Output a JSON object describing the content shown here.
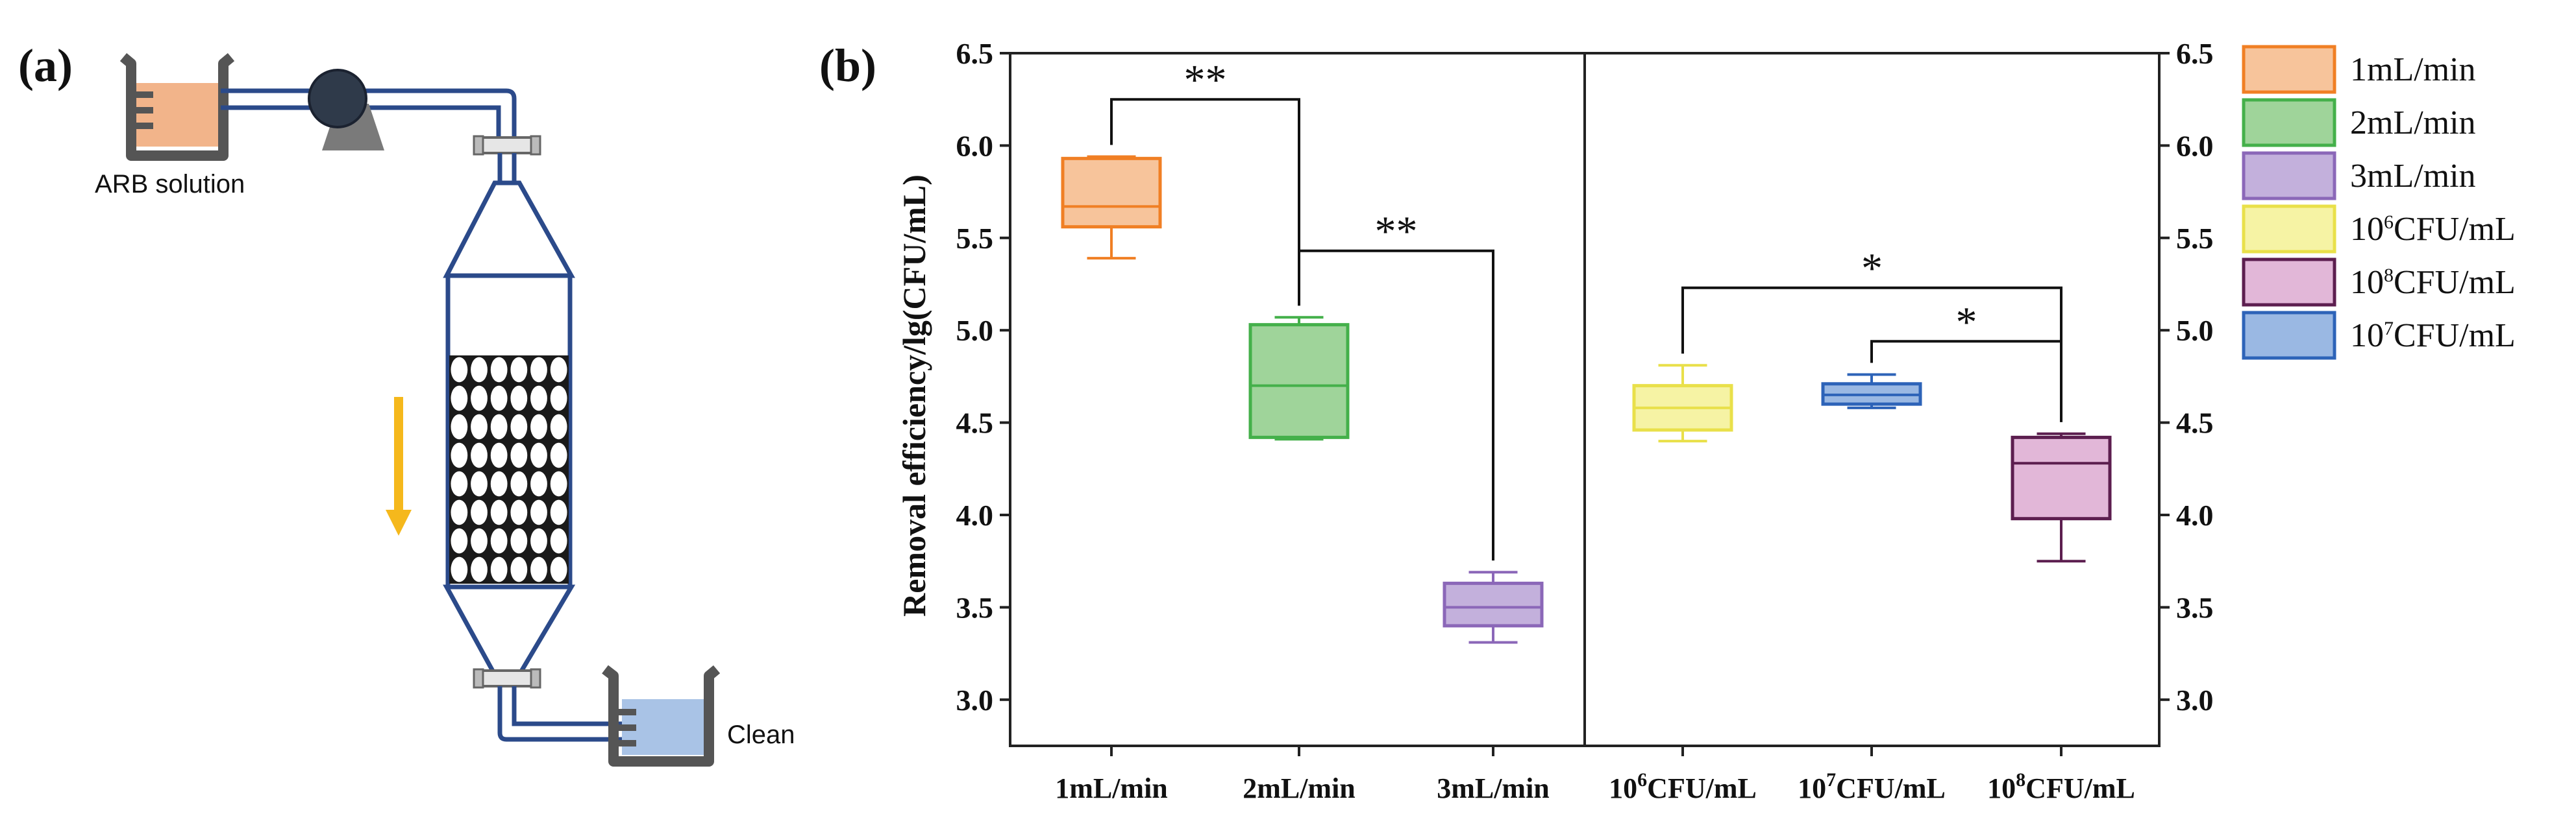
{
  "panels": {
    "a": "(a)",
    "b": "(b)"
  },
  "diagram": {
    "source_label": "ARB solution",
    "outlet_label": "Clean",
    "colors": {
      "pipe": "#2b4a8a",
      "source_liquid": "#f2b48a",
      "outlet_liquid": "#a9c3e6",
      "arrow": "#f5b81c",
      "pump": "#2f3a4a"
    }
  },
  "chart_data": {
    "type": "box",
    "ylabel": "Removal efficiency/lg(CFU/mL)",
    "ylim": [
      2.75,
      6.5
    ],
    "yticks": [
      "3.0",
      "3.5",
      "4.0",
      "4.5",
      "5.0",
      "5.5",
      "6.0",
      "6.5"
    ],
    "ytick_values": [
      3.0,
      3.5,
      4.0,
      4.5,
      5.0,
      5.5,
      6.0,
      6.5
    ],
    "categories": [
      {
        "prefix": "1mL/min",
        "exp": "",
        "suffix": ""
      },
      {
        "prefix": "2mL/min",
        "exp": "",
        "suffix": ""
      },
      {
        "prefix": "3mL/min",
        "exp": "",
        "suffix": ""
      },
      {
        "prefix": "10",
        "exp": "6",
        "suffix": "CFU/mL"
      },
      {
        "prefix": "10",
        "exp": "7",
        "suffix": "CFU/mL"
      },
      {
        "prefix": "10",
        "exp": "8",
        "suffix": "CFU/mL"
      }
    ],
    "series": [
      {
        "name": "1mL/min",
        "min": 5.39,
        "q1": 5.56,
        "median": 5.67,
        "q3": 5.93,
        "max": 5.94,
        "edge": "#f07f24",
        "fill": "#f7c49b"
      },
      {
        "name": "2mL/min",
        "min": 4.41,
        "q1": 4.42,
        "median": 4.7,
        "q3": 5.03,
        "max": 5.07,
        "edge": "#44b04a",
        "fill": "#9fd49a"
      },
      {
        "name": "3mL/min",
        "min": 3.31,
        "q1": 3.4,
        "median": 3.5,
        "q3": 3.63,
        "max": 3.69,
        "edge": "#8b67b8",
        "fill": "#c3b0dc"
      },
      {
        "name": "10^6CFU/mL",
        "min": 4.4,
        "q1": 4.46,
        "median": 4.58,
        "q3": 4.7,
        "max": 4.81,
        "edge": "#e9e04a",
        "fill": "#f6f3a4"
      },
      {
        "name": "10^7CFU/mL",
        "min": 4.58,
        "q1": 4.6,
        "median": 4.65,
        "q3": 4.71,
        "max": 4.76,
        "edge": "#2d63b8",
        "fill": "#9ab8e3"
      },
      {
        "name": "10^8CFU/mL",
        "min": 3.75,
        "q1": 3.98,
        "median": 4.28,
        "q3": 4.42,
        "max": 4.44,
        "edge": "#5c1e4f",
        "fill": "#e2b7d8"
      }
    ],
    "legend": [
      {
        "prefix": "1mL/min",
        "exp": "",
        "suffix": "",
        "edge": "#f07f24",
        "fill": "#f7c49b"
      },
      {
        "prefix": "2mL/min",
        "exp": "",
        "suffix": "",
        "edge": "#44b04a",
        "fill": "#9fd49a"
      },
      {
        "prefix": "3mL/min",
        "exp": "",
        "suffix": "",
        "edge": "#8b67b8",
        "fill": "#c3b0dc"
      },
      {
        "prefix": "10",
        "exp": "6",
        "suffix": "CFU/mL",
        "edge": "#e9e04a",
        "fill": "#f6f3a4"
      },
      {
        "prefix": "10",
        "exp": "8",
        "suffix": "CFU/mL",
        "edge": "#5c1e4f",
        "fill": "#e2b7d8"
      },
      {
        "prefix": "10",
        "exp": "7",
        "suffix": "CFU/mL",
        "edge": "#2d63b8",
        "fill": "#9ab8e3"
      }
    ],
    "annotations": [
      {
        "from": 0,
        "to": 1,
        "level": 6.25,
        "label": "**"
      },
      {
        "from": 1,
        "to": 2,
        "level": 5.43,
        "label": "**"
      },
      {
        "from": 3,
        "to": 5,
        "level": 5.23,
        "label": "*"
      },
      {
        "from": 4,
        "to": 5,
        "level": 4.94,
        "label": "*"
      }
    ]
  }
}
